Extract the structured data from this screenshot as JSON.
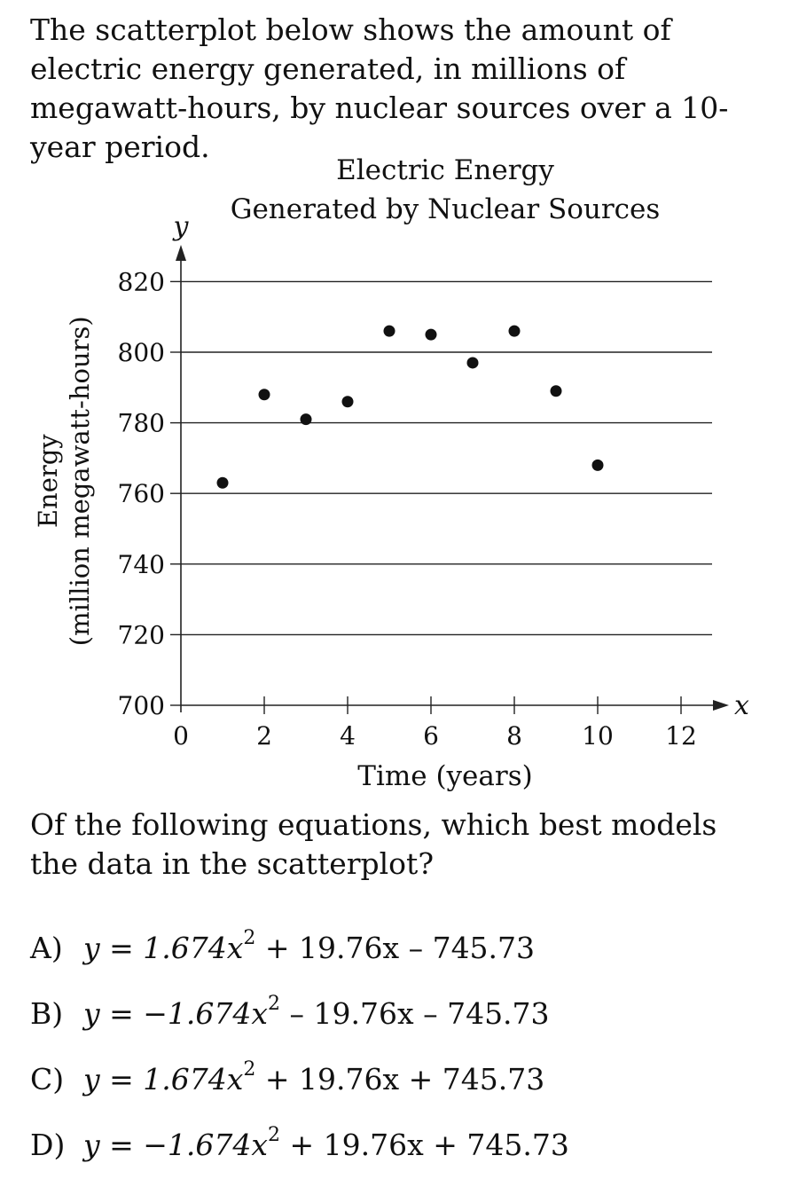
{
  "intro": "The scatterplot below shows the amount of electric energy generated, in millions of megawatt-hours, by nuclear sources over a 10-year period.",
  "question": "Of the following equations, which best models the data in the scatterplot?",
  "choices": [
    {
      "letter": "A)",
      "pre": "y = 1.674",
      "var": "x",
      "exp": "2",
      "post": " + 19.76x – 745.73"
    },
    {
      "letter": "B)",
      "pre": "y = −1.674",
      "var": "x",
      "exp": "2",
      "post": " – 19.76x – 745.73"
    },
    {
      "letter": "C)",
      "pre": "y = 1.674",
      "var": "x",
      "exp": "2",
      "post": " + 19.76x + 745.73"
    },
    {
      "letter": "D)",
      "pre": "y = −1.674",
      "var": "x",
      "exp": "2",
      "post": " + 19.76x + 745.73"
    }
  ],
  "chart_data": {
    "type": "scatter",
    "title": [
      "Electric Energy",
      "Generated by Nuclear Sources"
    ],
    "xlabel": "Time (years)",
    "ylabel": [
      "Energy",
      "(million megawatt-hours)"
    ],
    "x_axis_letter": "x",
    "y_axis_letter": "y",
    "xlim": [
      0,
      13
    ],
    "ylim": [
      700,
      825
    ],
    "xticks": [
      0,
      2,
      4,
      6,
      8,
      10,
      12
    ],
    "xtick_labels": [
      "0",
      "2",
      "4",
      "6",
      "8",
      "10",
      "12"
    ],
    "yticks": [
      700,
      720,
      740,
      760,
      780,
      800,
      820
    ],
    "ytick_labels": [
      "700",
      "720",
      "740",
      "760",
      "780",
      "800",
      "820"
    ],
    "grid": "horizontal",
    "points": [
      {
        "x": 1,
        "y": 763
      },
      {
        "x": 2,
        "y": 788
      },
      {
        "x": 3,
        "y": 781
      },
      {
        "x": 4,
        "y": 786
      },
      {
        "x": 5,
        "y": 806
      },
      {
        "x": 6,
        "y": 805
      },
      {
        "x": 7,
        "y": 797
      },
      {
        "x": 8,
        "y": 806
      },
      {
        "x": 9,
        "y": 789
      },
      {
        "x": 10,
        "y": 768
      }
    ]
  }
}
